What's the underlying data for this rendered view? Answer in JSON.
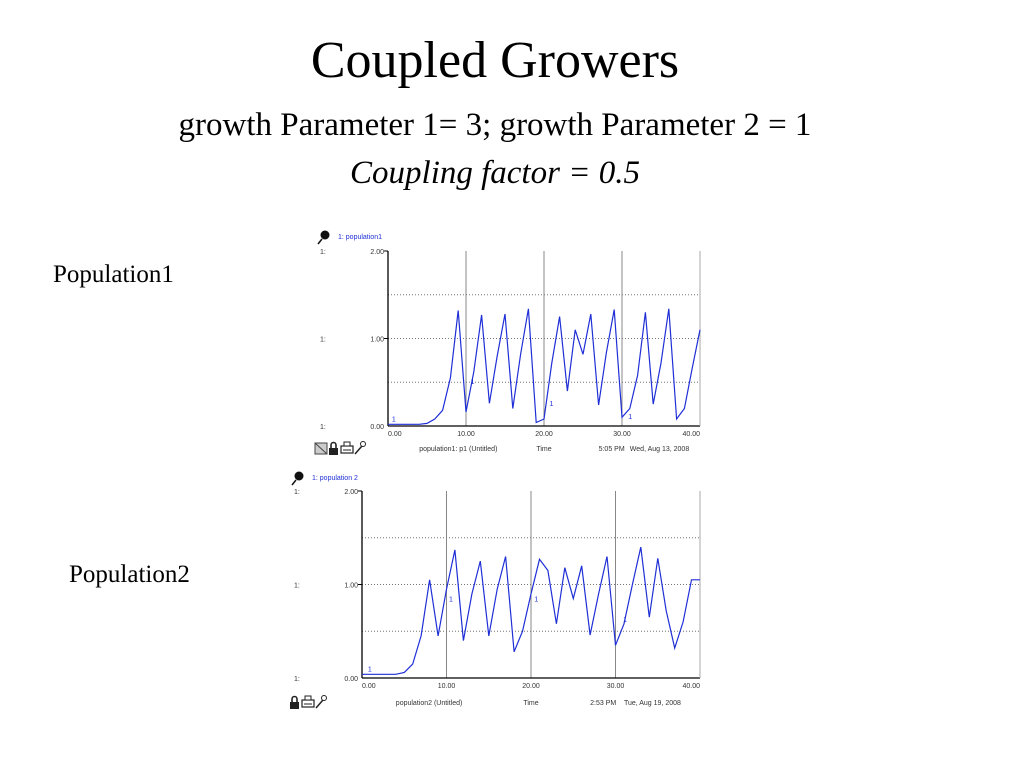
{
  "slide": {
    "title": "Coupled Growers",
    "subtitle": "growth Parameter 1= 3; growth Parameter 2 = 1",
    "coupling": "Coupling factor = 0.5"
  },
  "labels": {
    "left1": "Population1",
    "left2": "Population2"
  },
  "chart_data": [
    {
      "type": "line",
      "legend": "1: population1",
      "series_marker": "1",
      "axis_prefix": "1:",
      "xlim": [
        0,
        40
      ],
      "ylim": [
        0,
        2
      ],
      "yticks": [
        "0.00",
        "1.00",
        "2.00"
      ],
      "xticks": [
        "0.00",
        "10.00",
        "20.00",
        "30.00",
        "40.00"
      ],
      "footer": {
        "name": "population1: p1 (Untitled)",
        "axis": "Time",
        "time": "5:05 PM",
        "date": "Wed, Aug 13, 2008"
      },
      "toolbar_icons": [
        "page-icon",
        "lock-icon",
        "printer-icon",
        "pin-icon"
      ],
      "color": "#1f2fd6",
      "x": [
        0,
        1,
        2,
        3,
        4,
        5,
        6,
        7,
        8,
        9,
        10,
        11,
        12,
        13,
        14,
        15,
        16,
        17,
        18,
        19,
        20,
        21,
        22,
        23,
        24,
        25,
        26,
        27,
        28,
        29,
        30,
        31,
        32,
        33,
        34,
        35,
        36,
        37,
        38,
        39,
        40
      ],
      "values": [
        0.02,
        0.02,
        0.02,
        0.02,
        0.02,
        0.03,
        0.08,
        0.18,
        0.55,
        1.32,
        0.16,
        0.62,
        1.27,
        0.26,
        0.8,
        1.28,
        0.2,
        0.82,
        1.34,
        0.04,
        0.08,
        0.72,
        1.25,
        0.4,
        1.1,
        0.82,
        1.28,
        0.24,
        0.84,
        1.33,
        0.1,
        0.2,
        0.58,
        1.3,
        0.25,
        0.72,
        1.34,
        0.08,
        0.2,
        0.66,
        1.1
      ],
      "markers": [
        {
          "x": 0.5,
          "y": 0.05
        },
        {
          "x": 10.6,
          "y": 0.48
        },
        {
          "x": 20.7,
          "y": 0.23
        },
        {
          "x": 30.8,
          "y": 0.08
        }
      ]
    },
    {
      "type": "line",
      "legend": "1: population 2",
      "series_marker": "1",
      "axis_prefix": "1:",
      "xlim": [
        0,
        40
      ],
      "ylim": [
        0,
        2
      ],
      "yticks": [
        "0.00",
        "1.00",
        "2.00"
      ],
      "xticks": [
        "0.00",
        "10.00",
        "20.00",
        "30.00",
        "40.00"
      ],
      "footer": {
        "name": "population2 (Untitled)",
        "axis": "Time",
        "time": "2:53 PM",
        "date": "Tue, Aug 19, 2008"
      },
      "toolbar_icons": [
        "lock-icon",
        "printer-icon",
        "pin-icon"
      ],
      "color": "#1f2fd6",
      "x": [
        0,
        1,
        2,
        3,
        4,
        5,
        6,
        7,
        8,
        9,
        10,
        11,
        12,
        13,
        14,
        15,
        16,
        17,
        18,
        19,
        20,
        21,
        22,
        23,
        24,
        25,
        26,
        27,
        28,
        29,
        30,
        31,
        32,
        33,
        34,
        35,
        36,
        37,
        38,
        39,
        40
      ],
      "values": [
        0.04,
        0.04,
        0.04,
        0.04,
        0.04,
        0.06,
        0.15,
        0.45,
        1.05,
        0.45,
        0.95,
        1.37,
        0.4,
        0.9,
        1.25,
        0.45,
        0.95,
        1.3,
        0.28,
        0.5,
        0.9,
        1.27,
        1.15,
        0.58,
        1.18,
        0.85,
        1.2,
        0.46,
        0.9,
        1.3,
        0.35,
        0.58,
        1.0,
        1.4,
        0.65,
        1.28,
        0.72,
        0.32,
        0.6,
        1.05,
        1.05
      ],
      "markers": [
        {
          "x": 0.7,
          "y": 0.07
        },
        {
          "x": 10.3,
          "y": 0.82
        },
        {
          "x": 20.4,
          "y": 0.82
        },
        {
          "x": 30.9,
          "y": 0.6
        }
      ]
    }
  ]
}
